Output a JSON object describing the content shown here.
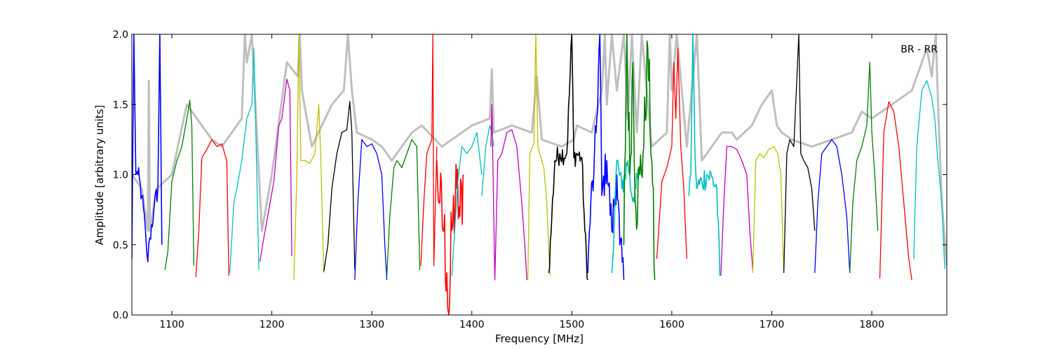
{
  "chart_data": {
    "type": "line",
    "title": "",
    "annotation": "BR - RR",
    "xlabel": "Frequency [MHz]",
    "ylabel": "Amplitude [arbitrary units]",
    "xlim": [
      1060,
      1875
    ],
    "ylim": [
      0,
      2.0
    ],
    "xticks": [
      1100,
      1200,
      1300,
      1400,
      1500,
      1600,
      1700,
      1800
    ],
    "xtick_labels": [
      "1100",
      "1200",
      "1300",
      "1400",
      "1500",
      "1600",
      "1700",
      "1800"
    ],
    "yticks": [
      0.0,
      0.5,
      1.0,
      1.5,
      2.0
    ],
    "ytick_labels": [
      "0.0",
      "0.5",
      "1.0",
      "1.5",
      "2.0"
    ],
    "grid": false,
    "background_trace_color": "#bfbfbf",
    "series": [
      {
        "color": "#0000ff",
        "noise": 0.08,
        "x": [
          1060,
          1062,
          1064,
          1066,
          1070,
          1074,
          1076,
          1078,
          1082,
          1086,
          1088,
          1090
        ],
        "y": [
          0.4,
          2.0,
          1.0,
          1.0,
          0.85,
          0.55,
          0.38,
          0.55,
          0.75,
          0.9,
          2.0,
          0.5
        ]
      },
      {
        "color": "#008000",
        "noise": 0.0,
        "x": [
          1093,
          1096,
          1100,
          1105,
          1110,
          1115,
          1118,
          1120,
          1122
        ],
        "y": [
          0.32,
          0.45,
          0.95,
          1.1,
          1.2,
          1.4,
          1.53,
          1.35,
          0.35
        ]
      },
      {
        "color": "#ff0000",
        "noise": 0.0,
        "x": [
          1124,
          1127,
          1130,
          1135,
          1140,
          1145,
          1150,
          1155,
          1157
        ],
        "y": [
          0.27,
          0.6,
          1.12,
          1.18,
          1.25,
          1.2,
          1.22,
          1.1,
          0.28
        ]
      },
      {
        "color": "#00bfbf",
        "noise": 0.0,
        "x": [
          1158,
          1162,
          1165,
          1170,
          1175,
          1180,
          1182,
          1184,
          1187
        ],
        "y": [
          0.3,
          0.8,
          0.9,
          1.1,
          1.4,
          1.5,
          1.9,
          1.3,
          0.32
        ]
      },
      {
        "color": "#bf00bf",
        "noise": 0.0,
        "x": [
          1188,
          1192,
          1197,
          1202,
          1207,
          1210,
          1215,
          1218,
          1220
        ],
        "y": [
          0.38,
          0.55,
          0.75,
          0.95,
          1.35,
          1.4,
          1.68,
          1.6,
          0.42
        ]
      },
      {
        "color": "#bfbf00",
        "noise": 0.0,
        "x": [
          1222,
          1225,
          1227,
          1229,
          1233,
          1238,
          1243,
          1247,
          1249,
          1252
        ],
        "y": [
          0.25,
          1.0,
          2.0,
          1.1,
          1.1,
          1.08,
          1.15,
          1.5,
          1.1,
          0.3
        ]
      },
      {
        "color": "#000000",
        "noise": 0.0,
        "x": [
          1252,
          1256,
          1260,
          1265,
          1270,
          1275,
          1278,
          1280,
          1283
        ],
        "y": [
          0.31,
          0.5,
          0.9,
          1.15,
          1.3,
          1.32,
          1.52,
          1.3,
          0.32
        ]
      },
      {
        "color": "#0000ff",
        "noise": 0.0,
        "x": [
          1283,
          1286,
          1290,
          1295,
          1300,
          1305,
          1310,
          1313,
          1315
        ],
        "y": [
          0.25,
          0.8,
          1.25,
          1.2,
          1.22,
          1.15,
          1.0,
          0.5,
          0.25
        ]
      },
      {
        "color": "#008000",
        "noise": 0.0,
        "x": [
          1315,
          1318,
          1322,
          1325,
          1330,
          1335,
          1340,
          1345,
          1348
        ],
        "y": [
          0.28,
          0.7,
          1.05,
          1.1,
          1.05,
          1.15,
          1.25,
          1.2,
          0.32
        ]
      },
      {
        "color": "#ff0000",
        "noise": 0.0,
        "x": [
          1349,
          1352,
          1355,
          1360,
          1361,
          1362,
          1365
        ],
        "y": [
          0.35,
          0.8,
          1.15,
          1.25,
          2.0,
          0.35,
          1.2
        ]
      },
      {
        "color": "#ff0000",
        "noise": 0.3,
        "x": [
          1365,
          1368,
          1372,
          1375,
          1377,
          1380,
          1385,
          1388,
          1392
        ],
        "y": [
          1.1,
          0.8,
          0.6,
          0.3,
          0.0,
          0.6,
          0.9,
          0.7,
          1.0
        ]
      },
      {
        "color": "#00bfbf",
        "noise": 0.0,
        "x": [
          1380,
          1382,
          1386,
          1390,
          1395,
          1400,
          1405,
          1410
        ],
        "y": [
          0.28,
          0.5,
          0.95,
          1.2,
          1.15,
          1.2,
          1.3,
          1.0
        ]
      },
      {
        "color": "#00bfbf",
        "noise": 0.0,
        "x": [
          1410,
          1414,
          1418,
          1420,
          1422
        ],
        "y": [
          0.85,
          1.2,
          1.35,
          1.3,
          1.2
        ]
      },
      {
        "color": "#bf00bf",
        "noise": 0.0,
        "x": [
          1419,
          1420,
          1421,
          1423,
          1426,
          1430,
          1435,
          1440,
          1445,
          1450,
          1453,
          1455
        ],
        "y": [
          1.2,
          1.5,
          1.1,
          0.25,
          1.1,
          1.15,
          1.3,
          1.32,
          1.2,
          0.8,
          0.5,
          0.25
        ]
      },
      {
        "color": "#bfbf00",
        "noise": 0.0,
        "x": [
          1456,
          1458,
          1462,
          1464,
          1466,
          1468,
          1472,
          1475,
          1478
        ],
        "y": [
          0.25,
          1.15,
          1.22,
          2.0,
          1.2,
          1.15,
          1.05,
          0.8,
          0.28
        ]
      },
      {
        "color": "#000000",
        "noise": 0.08,
        "x": [
          1477,
          1480,
          1483,
          1488,
          1495,
          1500,
          1502,
          1505,
          1510,
          1513,
          1516
        ],
        "y": [
          0.3,
          0.7,
          1.1,
          1.15,
          1.15,
          2.0,
          1.12,
          1.15,
          1.12,
          0.6,
          0.25
        ]
      },
      {
        "color": "#0000ff",
        "noise": 0.15,
        "x": [
          1516,
          1519,
          1522,
          1525,
          1528,
          1530,
          1535,
          1540,
          1545,
          1548,
          1552
        ],
        "y": [
          0.3,
          0.8,
          1.0,
          1.4,
          2.0,
          0.85,
          1.1,
          0.6,
          1.0,
          0.5,
          0.25
        ]
      },
      {
        "color": "#00bfbf",
        "noise": 0.1,
        "x": [
          1540,
          1545,
          1550,
          1553,
          1556,
          1560,
          1564,
          1568
        ],
        "y": [
          0.3,
          1.1,
          0.9,
          1.0,
          1.1,
          0.85,
          0.9,
          1.0
        ]
      },
      {
        "color": "#008000",
        "noise": 0.25,
        "x": [
          1552,
          1555,
          1558,
          1561,
          1564,
          1568,
          1572,
          1576,
          1580,
          1583
        ],
        "y": [
          0.5,
          2.0,
          1.0,
          1.8,
          0.75,
          1.0,
          1.2,
          1.9,
          1.1,
          0.25
        ]
      },
      {
        "color": "#ff0000",
        "noise": 0.0,
        "x": [
          1585,
          1590,
          1595,
          1600,
          1602,
          1604,
          1606,
          1609,
          1612,
          1615
        ],
        "y": [
          0.4,
          0.95,
          1.05,
          1.2,
          1.8,
          1.4,
          1.9,
          1.2,
          0.9,
          0.4
        ]
      },
      {
        "color": "#00bfbf",
        "noise": 0.1,
        "x": [
          1617,
          1619,
          1621,
          1623,
          1625,
          1630,
          1635,
          1640,
          1645,
          1648
        ],
        "y": [
          0.85,
          1.0,
          2.0,
          1.2,
          0.9,
          0.95,
          1.0,
          0.98,
          0.9,
          0.28
        ]
      },
      {
        "color": "#bf00bf",
        "noise": 0.0,
        "x": [
          1649,
          1652,
          1655,
          1660,
          1665,
          1670,
          1675,
          1678,
          1681
        ],
        "y": [
          0.28,
          0.8,
          1.2,
          1.2,
          1.18,
          1.1,
          1.0,
          0.6,
          0.32
        ]
      },
      {
        "color": "#bfbf00",
        "noise": 0.0,
        "x": [
          1681,
          1684,
          1688,
          1692,
          1697,
          1702,
          1706,
          1709,
          1712
        ],
        "y": [
          0.3,
          1.1,
          1.15,
          1.12,
          1.18,
          1.2,
          1.15,
          1.0,
          0.3
        ]
      },
      {
        "color": "#000000",
        "noise": 0.0,
        "x": [
          1712,
          1715,
          1718,
          1722,
          1727,
          1729,
          1732,
          1736,
          1740,
          1743
        ],
        "y": [
          0.3,
          1.15,
          1.25,
          1.2,
          2.0,
          1.15,
          1.1,
          1.05,
          0.9,
          0.6
        ]
      },
      {
        "color": "#0000ff",
        "noise": 0.0,
        "x": [
          1743,
          1746,
          1750,
          1755,
          1760,
          1765,
          1770,
          1775,
          1778
        ],
        "y": [
          0.3,
          0.8,
          1.15,
          1.2,
          1.25,
          1.2,
          1.0,
          0.7,
          0.3
        ]
      },
      {
        "color": "#008000",
        "noise": 0.0,
        "x": [
          1778,
          1781,
          1785,
          1790,
          1795,
          1798,
          1800,
          1803,
          1806
        ],
        "y": [
          0.3,
          0.8,
          1.1,
          1.2,
          1.35,
          1.8,
          1.3,
          1.0,
          0.6
        ]
      },
      {
        "color": "#ff0000",
        "noise": 0.0,
        "x": [
          1808,
          1812,
          1817,
          1822,
          1827,
          1832,
          1837,
          1840
        ],
        "y": [
          0.26,
          1.3,
          1.52,
          1.45,
          1.2,
          0.8,
          0.4,
          0.25
        ]
      },
      {
        "color": "#00bfbf",
        "noise": 0.0,
        "x": [
          1842,
          1845,
          1850,
          1855,
          1860,
          1863,
          1866,
          1870,
          1873
        ],
        "y": [
          0.4,
          1.2,
          1.6,
          1.67,
          1.55,
          1.4,
          1.1,
          0.8,
          0.33
        ]
      }
    ],
    "background_trace": {
      "x": [
        1060,
        1070,
        1076,
        1077,
        1078,
        1085,
        1100,
        1115,
        1140,
        1150,
        1170,
        1173,
        1175,
        1180,
        1190,
        1200,
        1215,
        1226,
        1228,
        1230,
        1240,
        1260,
        1272,
        1276,
        1280,
        1285,
        1300,
        1310,
        1320,
        1340,
        1350,
        1370,
        1400,
        1418,
        1420,
        1422,
        1440,
        1460,
        1465,
        1470,
        1490,
        1502,
        1505,
        1520,
        1530,
        1533,
        1535,
        1540,
        1545,
        1552,
        1556,
        1560,
        1565,
        1570,
        1580,
        1595,
        1598,
        1600,
        1605,
        1615,
        1625,
        1630,
        1640,
        1650,
        1660,
        1665,
        1680,
        1690,
        1700,
        1705,
        1710,
        1720,
        1740,
        1760,
        1780,
        1790,
        1800,
        1820,
        1840,
        1855,
        1860,
        1864,
        1866,
        1870,
        1875
      ],
      "y": [
        1.0,
        0.9,
        0.6,
        1.67,
        0.6,
        0.9,
        1.0,
        1.5,
        1.25,
        1.2,
        1.4,
        2.0,
        1.8,
        2.0,
        0.6,
        1.0,
        1.8,
        1.7,
        2.0,
        1.6,
        1.2,
        1.5,
        1.6,
        2.0,
        1.6,
        1.3,
        1.25,
        1.2,
        1.1,
        1.3,
        1.35,
        1.2,
        1.35,
        1.4,
        1.75,
        1.3,
        1.35,
        1.3,
        1.7,
        1.25,
        1.2,
        1.25,
        1.35,
        1.3,
        1.6,
        2.0,
        1.5,
        2.0,
        1.6,
        2.0,
        1.4,
        2.0,
        1.3,
        2.0,
        1.2,
        1.3,
        2.0,
        1.6,
        2.0,
        1.2,
        2.0,
        1.1,
        1.2,
        1.3,
        1.3,
        1.25,
        1.35,
        1.5,
        1.6,
        1.35,
        1.3,
        1.25,
        1.2,
        1.25,
        1.3,
        1.45,
        1.4,
        1.5,
        1.6,
        1.9,
        1.7,
        2.0,
        1.55,
        0.8,
        0.35
      ]
    }
  }
}
